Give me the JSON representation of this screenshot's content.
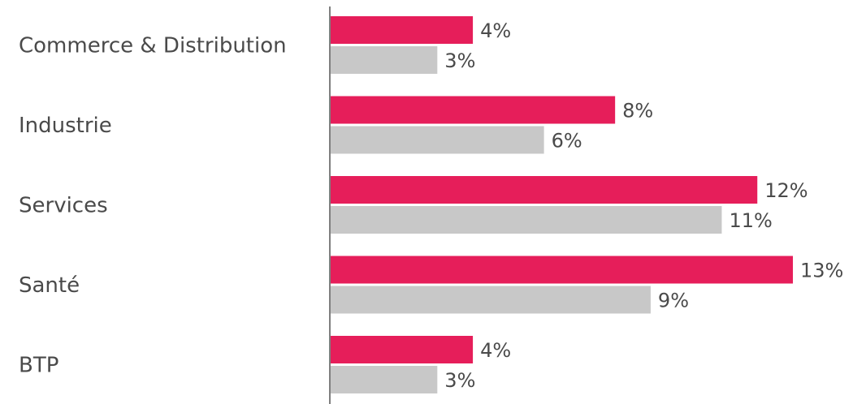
{
  "chart_data": {
    "type": "bar",
    "orientation": "horizontal",
    "categories": [
      "Commerce & Distribution",
      "Industrie",
      "Services",
      "Santé",
      "BTP"
    ],
    "series": [
      {
        "values": [
          4,
          8,
          12,
          13,
          4
        ],
        "labels": [
          "4%",
          "8%",
          "12%",
          "13%",
          "4%"
        ],
        "color": "#e61e5a"
      },
      {
        "values": [
          3,
          6,
          11,
          9,
          3
        ],
        "labels": [
          "3%",
          "6%",
          "11%",
          "9%",
          "3%"
        ],
        "color": "#c8c8c8"
      }
    ],
    "unit": "%",
    "xlim": [
      0,
      13
    ],
    "grid": false,
    "legend": "none",
    "title": "",
    "xlabel": "",
    "ylabel": ""
  }
}
